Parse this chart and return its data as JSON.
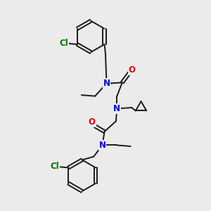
{
  "background_color": "#ebebeb",
  "bond_color": "#1a1a1a",
  "N_color": "#0000ee",
  "O_color": "#dd0000",
  "Cl_color": "#007700",
  "line_width": 1.4,
  "font_size": 8.5,
  "figsize": [
    3.0,
    3.0
  ],
  "dpi": 100,
  "xlim": [
    0,
    10
  ],
  "ylim": [
    0,
    10
  ]
}
